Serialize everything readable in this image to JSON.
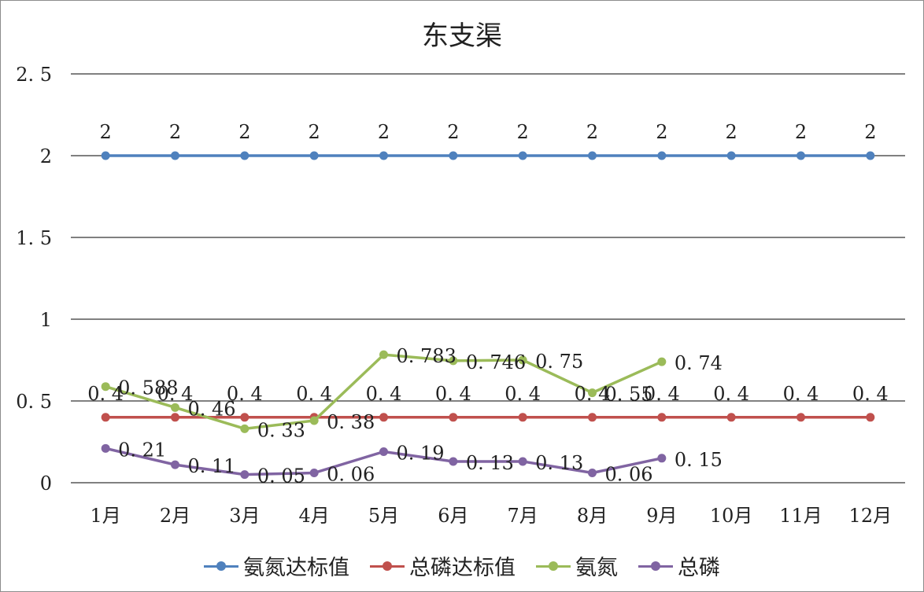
{
  "chart_data": {
    "type": "line",
    "title": "东支渠",
    "xlabel": "",
    "ylabel": "",
    "categories": [
      "1月",
      "2月",
      "3月",
      "4月",
      "5月",
      "6月",
      "7月",
      "8月",
      "9月",
      "10月",
      "11月",
      "12月"
    ],
    "y_ticks": [
      "0",
      "0. 5",
      "1",
      "1. 5",
      "2",
      "2. 5"
    ],
    "ylim": [
      0,
      2.5
    ],
    "grid": true,
    "legend_position": "bottom",
    "series": [
      {
        "name": "氨氮达标值",
        "color": "#4f81bd",
        "values": [
          2,
          2,
          2,
          2,
          2,
          2,
          2,
          2,
          2,
          2,
          2,
          2
        ],
        "labels": [
          "2",
          "2",
          "2",
          "2",
          "2",
          "2",
          "2",
          "2",
          "2",
          "2",
          "2",
          "2"
        ]
      },
      {
        "name": "总磷达标值",
        "color": "#c0504d",
        "values": [
          0.4,
          0.4,
          0.4,
          0.4,
          0.4,
          0.4,
          0.4,
          0.4,
          0.4,
          0.4,
          0.4,
          0.4
        ],
        "labels": [
          "0. 4",
          "0. 4",
          "0. 4",
          "0. 4",
          "0. 4",
          "0. 4",
          "0. 4",
          "0. 4",
          "0. 4",
          "0. 4",
          "0. 4",
          "0. 4"
        ]
      },
      {
        "name": "氨氮",
        "color": "#9bbb59",
        "values": [
          0.588,
          0.46,
          0.33,
          0.38,
          0.783,
          0.746,
          0.75,
          0.55,
          0.74,
          null,
          null,
          null
        ],
        "labels": [
          "0. 588",
          "0. 46",
          "0. 33",
          "0. 38",
          "0. 783",
          "0. 746",
          "0. 75",
          "0. 55",
          "0. 74",
          null,
          null,
          null
        ]
      },
      {
        "name": "总磷",
        "color": "#8064a2",
        "values": [
          0.21,
          0.11,
          0.05,
          0.06,
          0.19,
          0.13,
          0.13,
          0.06,
          0.15,
          null,
          null,
          null
        ],
        "labels": [
          "0. 21",
          "0. 11",
          "0. 05",
          "0. 06",
          "0. 19",
          "0. 13",
          "0. 13",
          "0. 06",
          "0. 15",
          null,
          null,
          null
        ]
      }
    ]
  }
}
